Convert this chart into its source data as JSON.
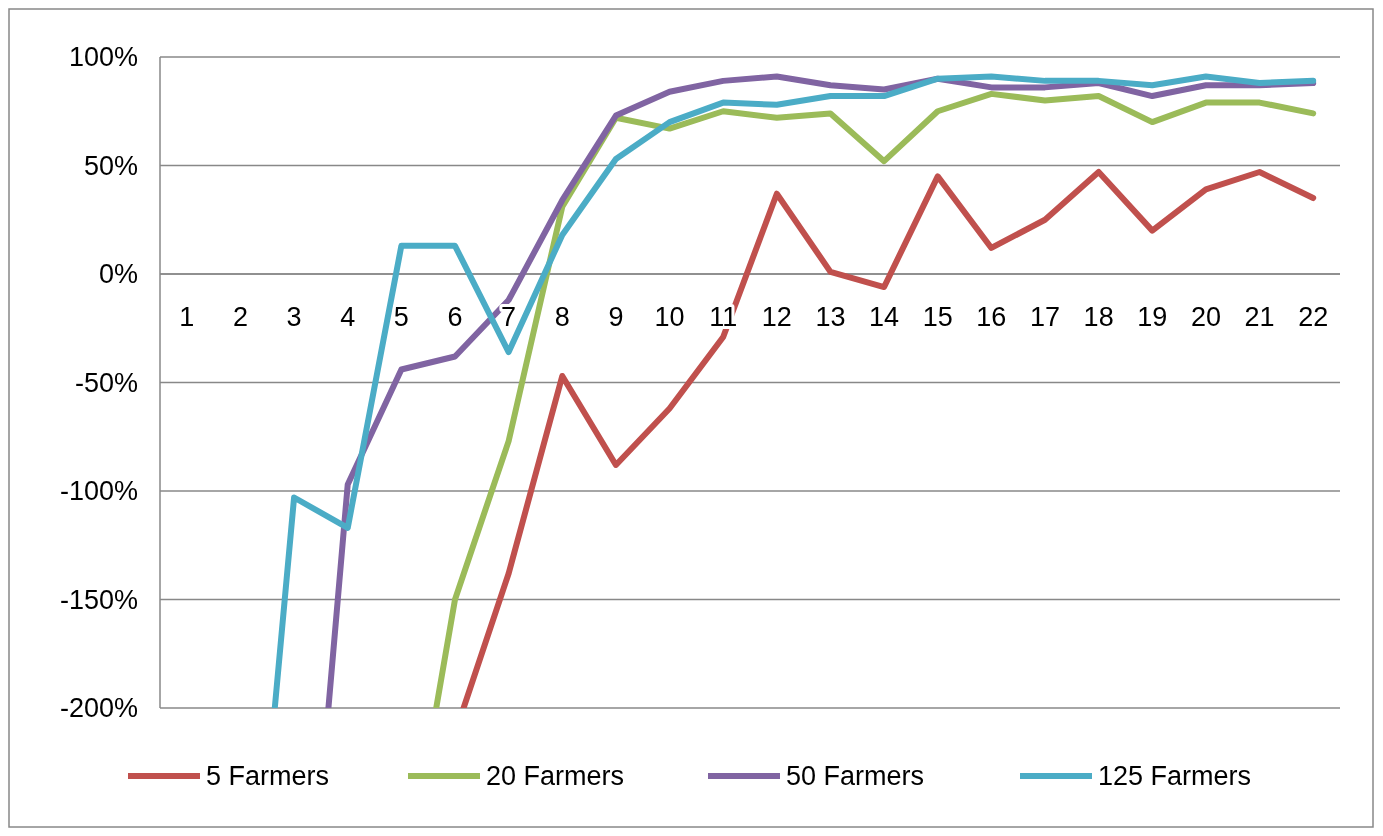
{
  "chart_data": {
    "type": "line",
    "xlim": [
      0.5,
      22.5
    ],
    "xticks": [
      1,
      2,
      3,
      4,
      5,
      6,
      7,
      8,
      9,
      10,
      11,
      12,
      13,
      14,
      15,
      16,
      17,
      18,
      19,
      20,
      21,
      22
    ],
    "ylim": [
      -200,
      100
    ],
    "yticks": [
      {
        "value": -200,
        "label": "-200%"
      },
      {
        "value": -150,
        "label": "-150%"
      },
      {
        "value": -100,
        "label": "-100%"
      },
      {
        "value": -50,
        "label": "-50%"
      },
      {
        "value": 0,
        "label": "0%"
      },
      {
        "value": 50,
        "label": "50%"
      },
      {
        "value": 100,
        "label": "100%"
      }
    ],
    "grid": "y",
    "legend": "bottom",
    "marker": "none",
    "line_style": "solid",
    "series": [
      {
        "name": "5 Farmers",
        "color": "#c0504d",
        "x": [
          6.16,
          7,
          8,
          9,
          10,
          11,
          12,
          13,
          14,
          15,
          16,
          17,
          18,
          19,
          20,
          21,
          22
        ],
        "values": [
          -200,
          -138,
          -47,
          -88,
          -62,
          -29,
          37,
          1,
          -6,
          45,
          12,
          25,
          47,
          20,
          39,
          47,
          35
        ]
      },
      {
        "name": "20 Farmers",
        "color": "#9bbb59",
        "x": [
          5.65,
          6,
          7,
          8,
          9,
          10,
          11,
          12,
          13,
          14,
          15,
          16,
          17,
          18,
          19,
          20,
          21,
          22
        ],
        "values": [
          -200,
          -150,
          -77,
          31,
          72,
          67,
          75,
          72,
          74,
          52,
          75,
          83,
          80,
          82,
          70,
          79,
          79,
          74
        ]
      },
      {
        "name": "50 Farmers",
        "color": "#8064a2",
        "x": [
          3.64,
          4,
          5,
          6,
          7,
          8,
          9,
          10,
          11,
          12,
          13,
          14,
          15,
          16,
          17,
          18,
          19,
          20,
          21,
          22
        ],
        "values": [
          -200,
          -97,
          -44,
          -38,
          -12,
          34,
          73,
          84,
          89,
          91,
          87,
          85,
          90,
          86,
          86,
          88,
          82,
          87,
          87,
          88
        ]
      },
      {
        "name": "125 Farmers",
        "color": "#4bacc6",
        "x": [
          2.64,
          3,
          4,
          5,
          6,
          7,
          8,
          9,
          10,
          11,
          12,
          13,
          14,
          15,
          16,
          17,
          18,
          19,
          20,
          21,
          22
        ],
        "values": [
          -200,
          -103,
          -117,
          13,
          13,
          -36,
          18,
          53,
          70,
          79,
          78,
          82,
          82,
          90,
          91,
          89,
          89,
          87,
          91,
          88,
          89
        ]
      }
    ]
  }
}
